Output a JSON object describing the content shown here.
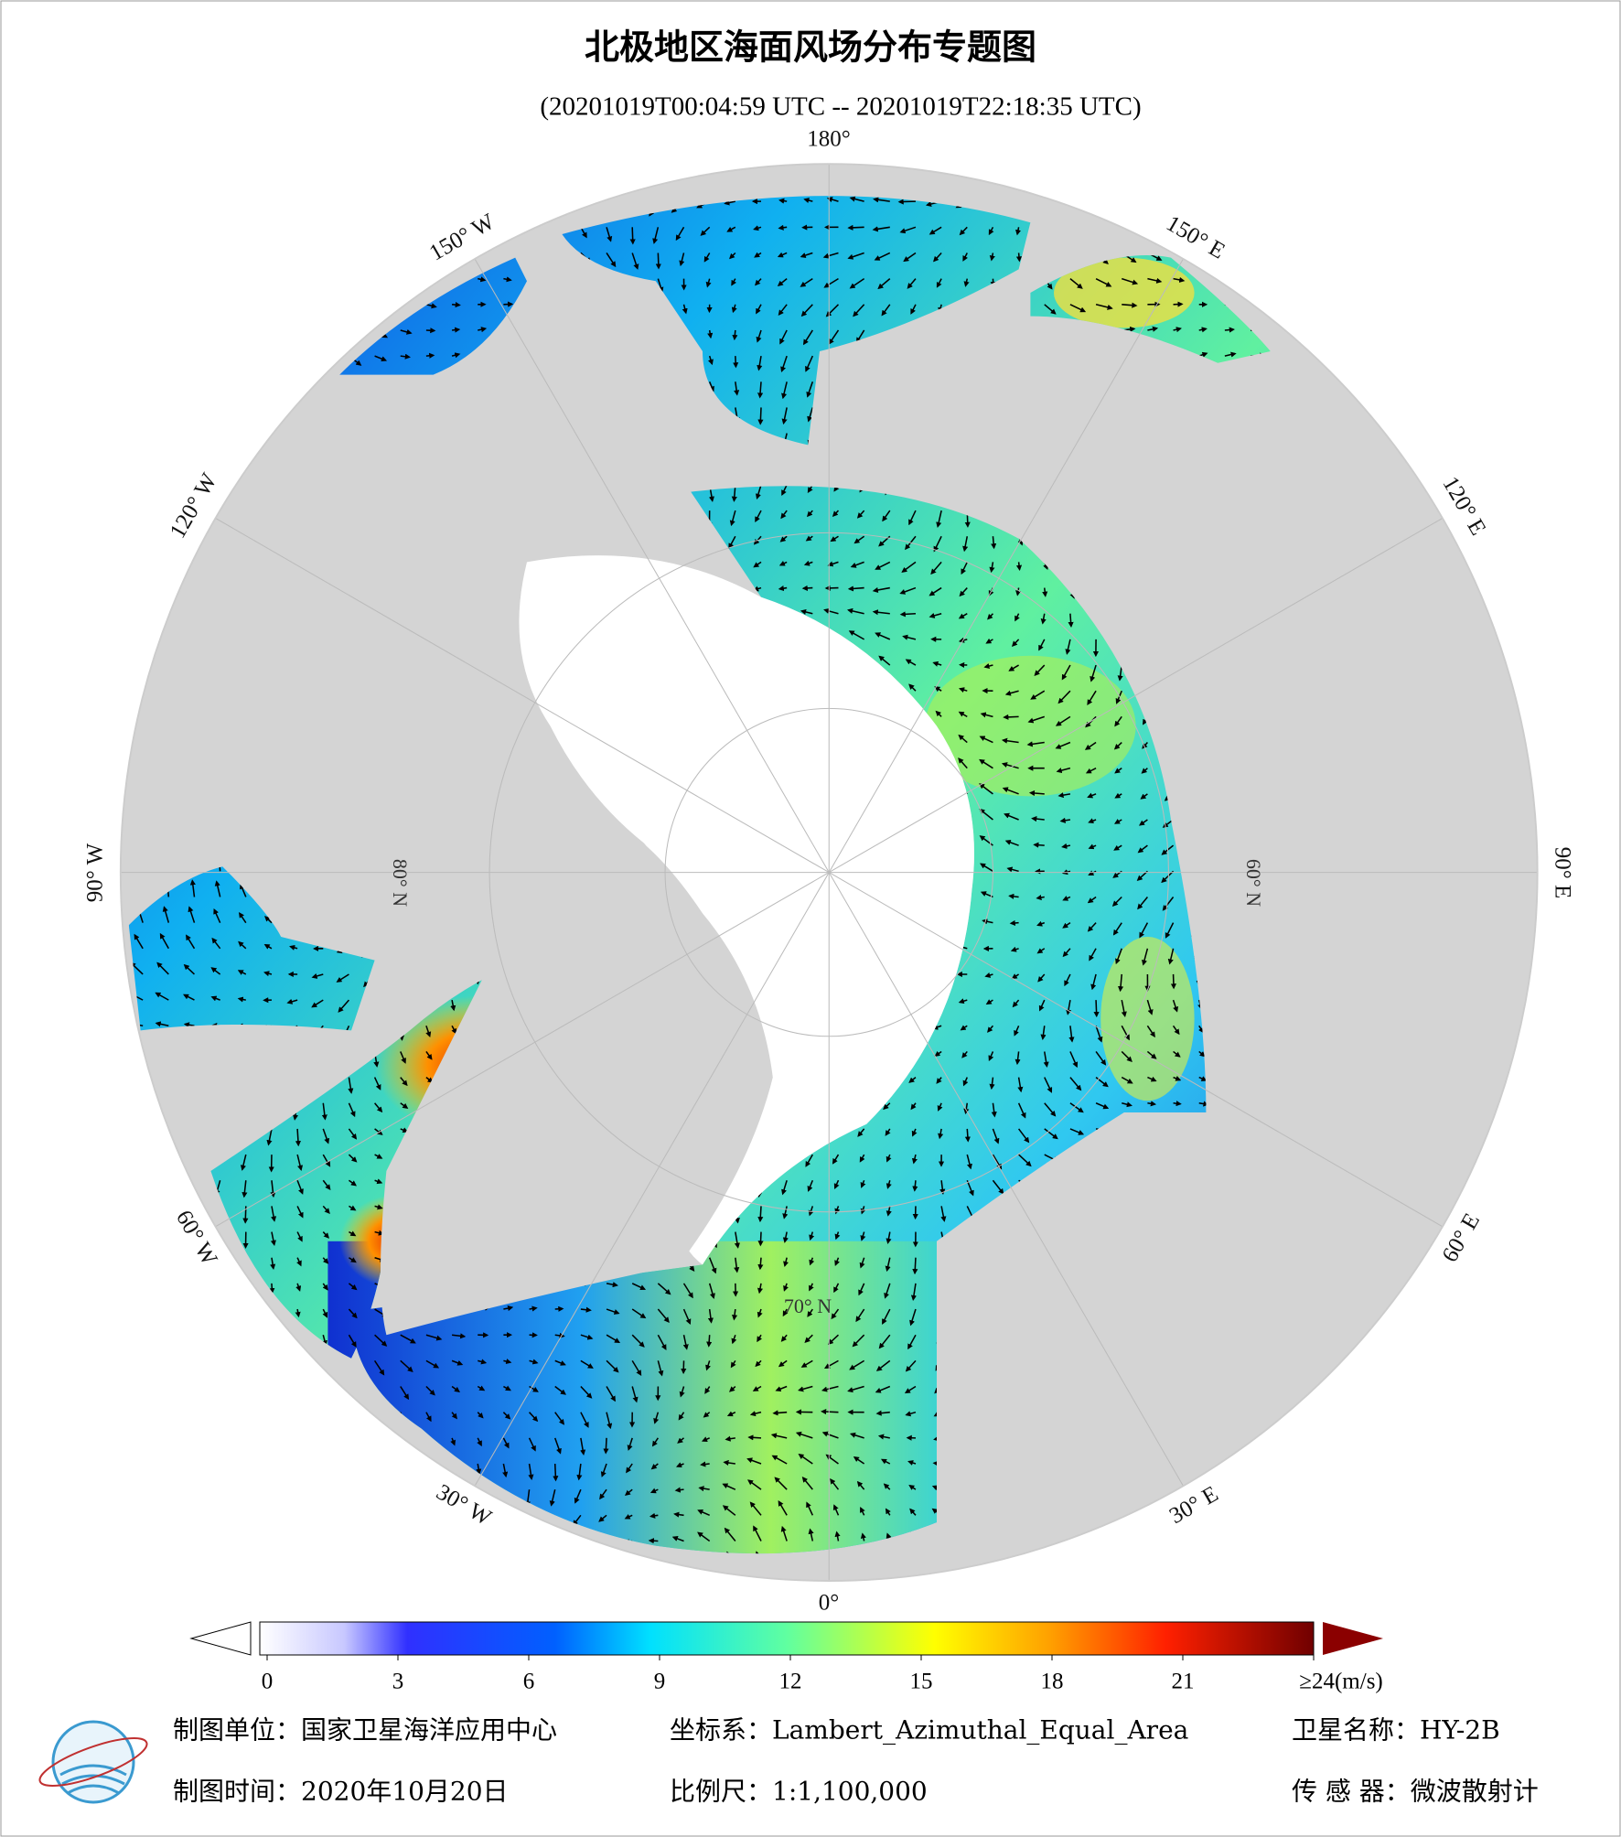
{
  "header": {
    "title": "北极地区海面风场分布专题图",
    "subtitle": "(20201019T00:04:59 UTC -- 20201019T22:18:35 UTC)"
  },
  "map": {
    "longitude_labels": [
      "180°",
      "150° E",
      "120° E",
      "90° E",
      "60° E",
      "30° E",
      "0°",
      "30° W",
      "60° W",
      "90° W",
      "120° W",
      "150° W"
    ],
    "latitude_labels": [
      "60° N",
      "70° N",
      "80° N"
    ]
  },
  "colorbar": {
    "ticks": [
      0,
      3,
      6,
      9,
      12,
      15,
      18,
      21,
      {
        "value": 24,
        "label": "≥24(m/s)"
      }
    ]
  },
  "footer": {
    "unit": "制图单位：国家卫星海洋应用中心",
    "projection": "坐标系：Lambert_Azimuthal_Equal_Area",
    "satellite": "卫星名称：HY-2B",
    "date": "制图时间：2020年10月20日",
    "scale": "比例尺：1:1,100,000",
    "sensor": "传 感 器：微波散射计"
  }
}
